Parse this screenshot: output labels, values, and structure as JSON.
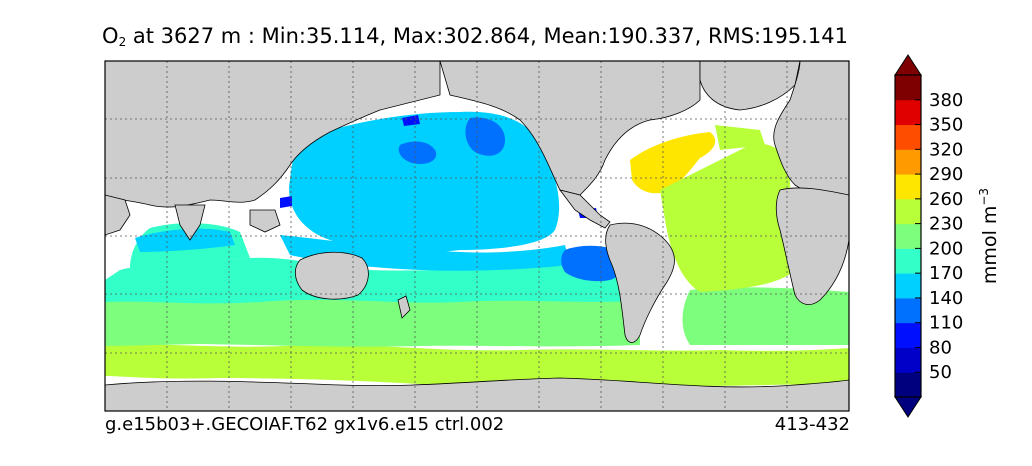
{
  "title": {
    "variable_main": "O",
    "variable_sub": "2",
    "rest": " at 3627 m : Min:35.114, Max:302.864, Mean:190.337, RMS:195.141"
  },
  "footer": {
    "left": "g.e15b03+.GECOIAF.T62 gx1v6.e15 ctrl.002",
    "right": "413-432"
  },
  "colorbar": {
    "units_main": "mmol m",
    "units_sup": "−3",
    "ticks": [
      "50",
      "80",
      "110",
      "140",
      "170",
      "200",
      "230",
      "260",
      "290",
      "320",
      "350",
      "380"
    ],
    "bands_colors": [
      "#00007f",
      "#0000c8",
      "#0010ff",
      "#0070ff",
      "#00d0ff",
      "#33ffc8",
      "#7dff7d",
      "#b8ff3a",
      "#ffe600",
      "#ff9b00",
      "#ff4d00",
      "#e00000",
      "#7f0000"
    ]
  },
  "map": {
    "land_color": "#cdcdcd",
    "ocean_missing_color": "#ffffff",
    "grid": true
  }
}
